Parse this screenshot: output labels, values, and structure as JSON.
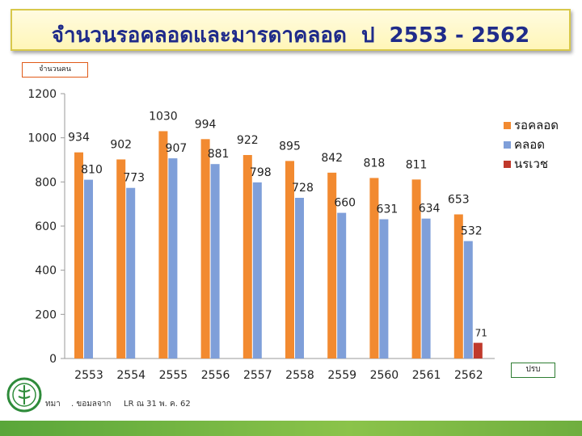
{
  "header": {
    "title": "จำนวนรอคลอดและมารดาคลอด  ป  2553 - 2562"
  },
  "unit_label": "จำนวนคน",
  "note_label": "ปรบ",
  "footer": {
    "source_a": "ทมา",
    "source_b": ". ขอมลจาก",
    "source_c": "LR ณ 31 พ. ค. 62"
  },
  "colors": {
    "waiting": "#F28A30",
    "delivered": "#7F9FD9",
    "pregnancy_illness": "#C0392B",
    "title_text": "#1F2B8A",
    "footer_bar": "#6FAE3F"
  },
  "chart_data": {
    "type": "bar",
    "categories": [
      "2553",
      "2554",
      "2555",
      "2556",
      "2557",
      "2558",
      "2559",
      "2560",
      "2561",
      "2562"
    ],
    "series": [
      {
        "name": "รอคลอด",
        "color": "#F28A30",
        "values": [
          934,
          902,
          1030,
          994,
          922,
          895,
          842,
          818,
          811,
          653
        ]
      },
      {
        "name": "คลอด",
        "color": "#7F9FD9",
        "values": [
          810,
          773,
          907,
          881,
          798,
          728,
          660,
          631,
          634,
          532
        ]
      },
      {
        "name": "นรเวช",
        "color": "#C0392B",
        "values": [
          null,
          null,
          null,
          null,
          null,
          null,
          null,
          null,
          null,
          71
        ]
      }
    ],
    "y_ticks": [
      "0",
      "200",
      "400",
      "600",
      "800",
      "1000",
      "1200"
    ],
    "ylim": [
      0,
      1200
    ],
    "grid": false,
    "legend_position": "right"
  }
}
